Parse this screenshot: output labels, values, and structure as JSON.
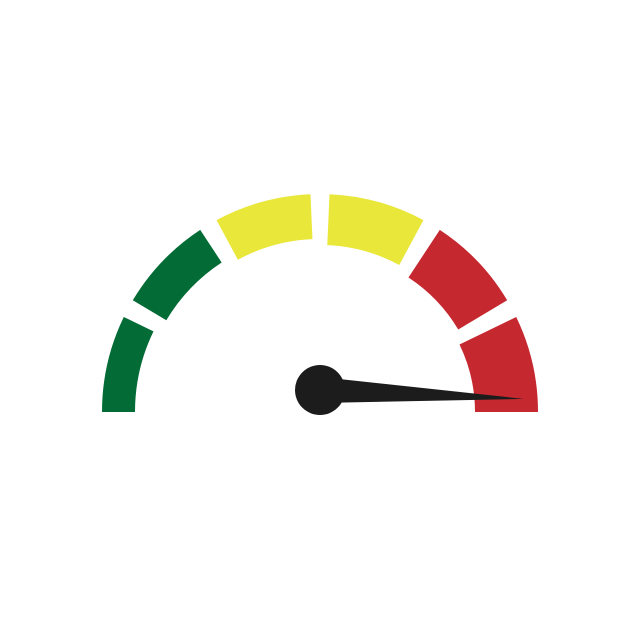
{
  "gauge": {
    "level": 1.0,
    "segments": [
      {
        "zone": "low",
        "color": "#036b35"
      },
      {
        "zone": "low",
        "color": "#036b35"
      },
      {
        "zone": "medium",
        "color": "#e9e73a"
      },
      {
        "zone": "medium",
        "color": "#e9e73a"
      },
      {
        "zone": "high",
        "color": "#c62830"
      },
      {
        "zone": "high",
        "color": "#c62830"
      }
    ],
    "needle_color": "#1c1c1c",
    "background_color": "#ffffff"
  }
}
